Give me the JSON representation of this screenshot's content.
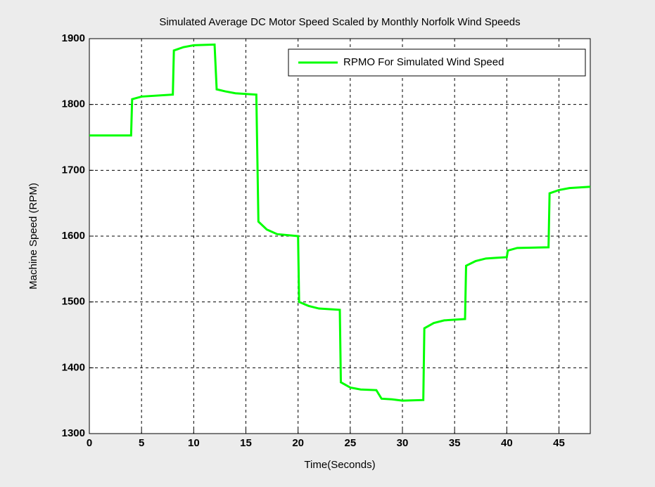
{
  "chart_data": {
    "type": "line",
    "title": "Simulated Average DC Motor Speed Scaled by Monthly Norfolk Wind Speeds",
    "xlabel": "Time(Seconds)",
    "ylabel": "Machine Speed (RPM)",
    "x": [
      0,
      4,
      4.1,
      5,
      8,
      8.1,
      9,
      10,
      12,
      12.2,
      13,
      14,
      16,
      16.2,
      17,
      18,
      20,
      20.1,
      21,
      22,
      24,
      24.1,
      25,
      26,
      27.5,
      28,
      29,
      30,
      32,
      32.1,
      33,
      34,
      36,
      36.1,
      37,
      38,
      39,
      40,
      40.1,
      41,
      44,
      44.1,
      45,
      46,
      48
    ],
    "series": [
      {
        "name": "RPMO For Simulated Wind Speed",
        "color": "#00ff00",
        "values": [
          1753,
          1753,
          1808,
          1812,
          1815,
          1882,
          1887,
          1890,
          1891,
          1823,
          1820,
          1817,
          1815,
          1622,
          1610,
          1603,
          1600,
          1500,
          1494,
          1490,
          1488,
          1378,
          1370,
          1367,
          1366,
          1353,
          1352,
          1350,
          1351,
          1460,
          1468,
          1472,
          1474,
          1555,
          1562,
          1566,
          1567,
          1568,
          1578,
          1582,
          1583,
          1665,
          1670,
          1673,
          1675
        ]
      }
    ],
    "xlim": [
      0,
      48
    ],
    "xticks": [
      0,
      5,
      10,
      15,
      20,
      25,
      30,
      35,
      40,
      45
    ],
    "ylim": [
      1300,
      1900
    ],
    "yticks": [
      1300,
      1400,
      1500,
      1600,
      1700,
      1800,
      1900
    ],
    "grid": true,
    "legend": "upper right"
  }
}
